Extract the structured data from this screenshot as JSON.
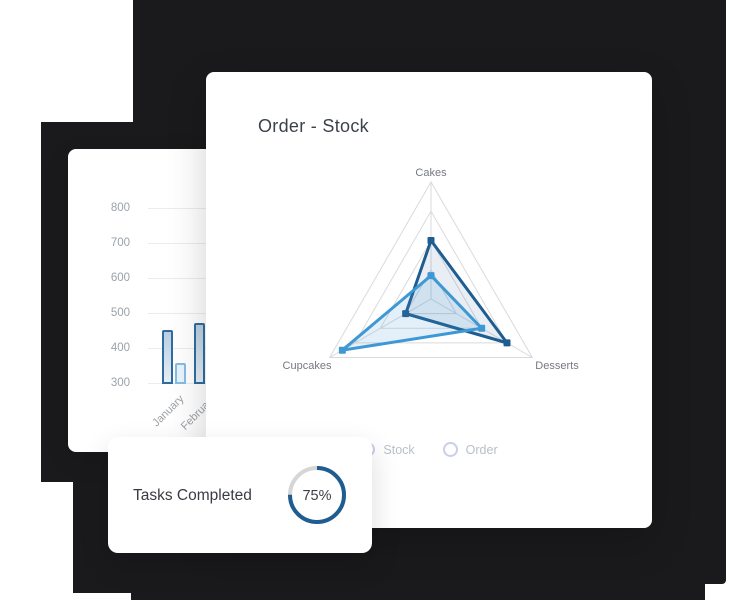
{
  "colors": {
    "background_shape": "#1a1a1c",
    "accent_dark_blue": "#1f5c90",
    "accent_light_blue": "#3e98d4",
    "radar_fill_dark": "rgba(31,92,144,0.10)",
    "radar_fill_light": "rgba(62,152,212,0.14)",
    "radar_grid": "#d9dadd",
    "bar_grid": "#ececee",
    "bar_dark_border": "#2f6da1",
    "bar_dark_fill_top": "#b9cfe2",
    "bar_dark_fill_bottom": "#e7eef5",
    "bar_light_border": "#85bde6",
    "bar_light_fill": "#e9f3fb",
    "donut_track": "#d6d6d6",
    "legend_circle": "#c9cee9"
  },
  "radar_card": {
    "title": "Order - Stock"
  },
  "tasks_card": {
    "label": "Tasks Completed",
    "percent": 75,
    "percent_label": "75%"
  },
  "chart_data": [
    {
      "type": "radar",
      "title": "Order - Stock",
      "categories": [
        "Cakes",
        "Desserts",
        "Cupcakes"
      ],
      "rings": [
        10,
        20,
        30,
        40
      ],
      "rmax": 40,
      "legend_position": "bottom",
      "series": [
        {
          "name": "Stock",
          "color": "#1f5c90",
          "values": [
            20,
            30,
            10
          ]
        },
        {
          "name": "Order",
          "color": "#3e98d4",
          "values": [
            8,
            20,
            35
          ]
        }
      ]
    },
    {
      "type": "bar",
      "categories": [
        "January",
        "February"
      ],
      "series": [
        {
          "name": "dark-blue",
          "values": [
            455,
            475
          ]
        },
        {
          "name": "light-blue",
          "values": [
            360,
            null
          ]
        }
      ],
      "ylim": [
        300,
        800
      ],
      "yticks": [
        800,
        700,
        600,
        500,
        400,
        300
      ],
      "grid": true
    },
    {
      "type": "donut",
      "label": "Tasks Completed",
      "value": 75,
      "max": 100
    }
  ]
}
